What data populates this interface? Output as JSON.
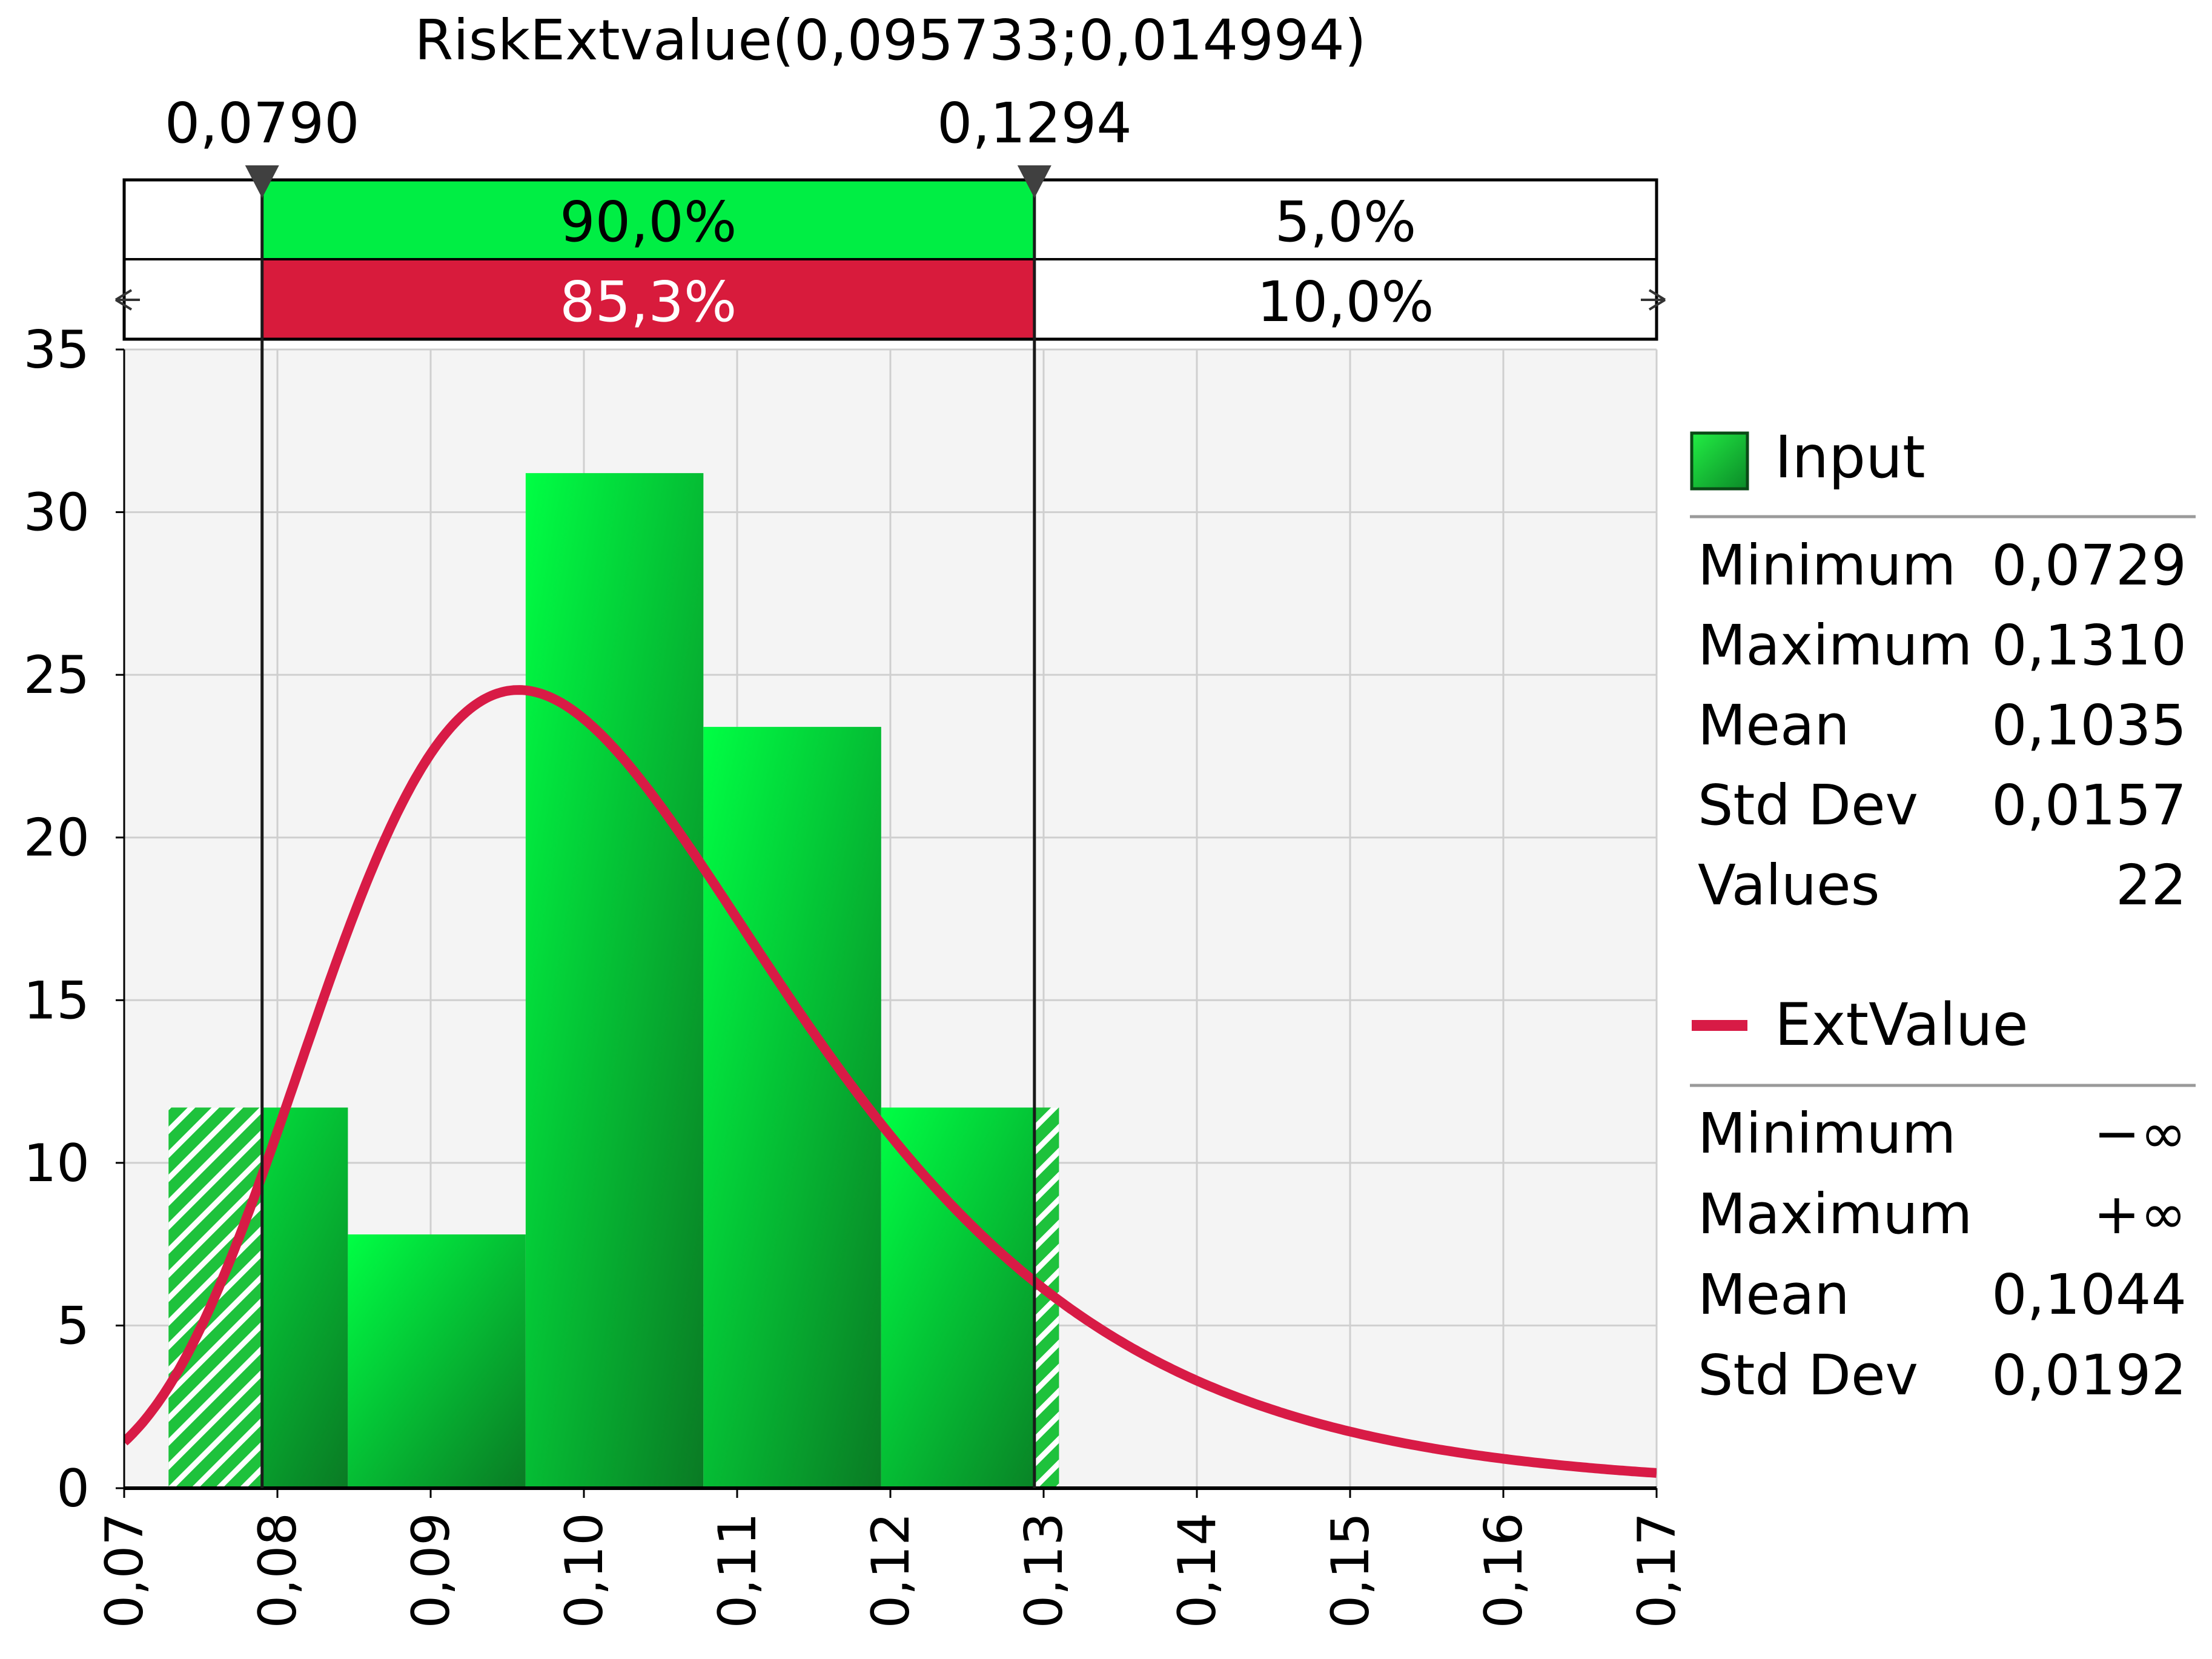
{
  "chart_data": {
    "type": "bar",
    "title": "RiskExtvalue(0,095733;0,014994)",
    "xlabel": "",
    "ylabel": "",
    "xlim": [
      0.07,
      0.17
    ],
    "ylim": [
      0,
      35
    ],
    "x_tick_labels": [
      "0,07",
      "0,08",
      "0,09",
      "0,10",
      "0,11",
      "0,12",
      "0,13",
      "0,14",
      "0,15",
      "0,16",
      "0,17"
    ],
    "y_tick_labels": [
      "0",
      "5",
      "10",
      "15",
      "20",
      "25",
      "30",
      "35"
    ],
    "grid": true,
    "histogram": {
      "name": "Input",
      "bins": [
        {
          "from": 0.0729,
          "to": 0.0846,
          "density": 11.7
        },
        {
          "from": 0.0846,
          "to": 0.0962,
          "density": 7.8
        },
        {
          "from": 0.0962,
          "to": 0.1078,
          "density": 31.2
        },
        {
          "from": 0.1078,
          "to": 0.1194,
          "density": 23.4
        },
        {
          "from": 0.1194,
          "to": 0.131,
          "density": 11.7
        }
      ],
      "color": "#1ed43a"
    },
    "fitted_curve": {
      "name": "ExtValue",
      "distribution": "extreme value",
      "location": 0.095733,
      "scale": 0.014994,
      "color": "#d81b46"
    },
    "delimiters": {
      "left": {
        "x": 0.079,
        "label": "0,0790"
      },
      "right": {
        "x": 0.1294,
        "label": "0,1294"
      }
    },
    "probability_bands": {
      "input": {
        "left": "",
        "middle": "90,0%",
        "right": "5,0%"
      },
      "fit": {
        "left": "",
        "middle": "85,3%",
        "right": "10,0%"
      }
    },
    "legend": {
      "position": "right",
      "input": {
        "label": "Input",
        "stats": [
          {
            "name": "Minimum",
            "value": "0,0729"
          },
          {
            "name": "Maximum",
            "value": "0,1310"
          },
          {
            "name": "Mean",
            "value": "0,1035"
          },
          {
            "name": "Std Dev",
            "value": "0,0157"
          },
          {
            "name": "Values",
            "value": "22"
          }
        ]
      },
      "fit": {
        "label": "ExtValue",
        "stats": [
          {
            "name": "Minimum",
            "value": "−∞"
          },
          {
            "name": "Maximum",
            "value": "+∞"
          },
          {
            "name": "Mean",
            "value": "0,1044"
          },
          {
            "name": "Std Dev",
            "value": "0,0192"
          }
        ]
      }
    }
  }
}
